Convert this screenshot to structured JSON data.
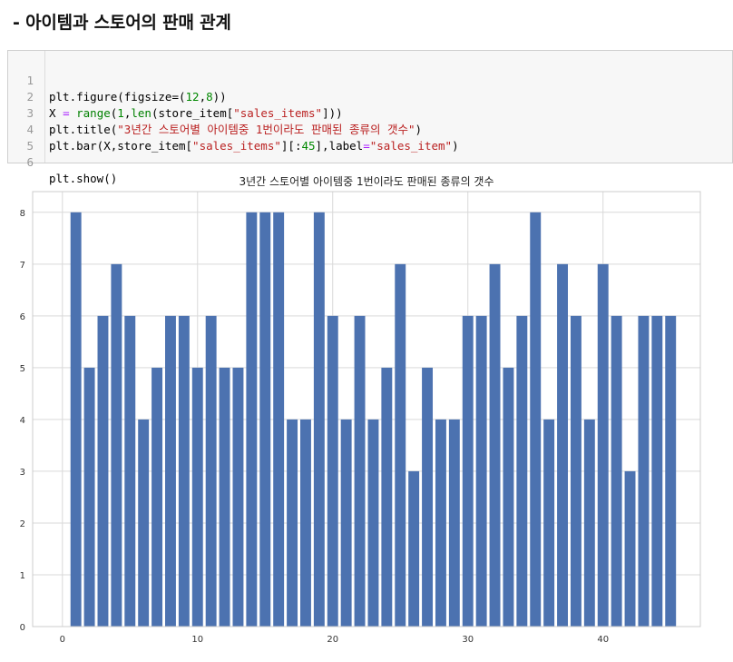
{
  "heading": "- 아이템과 스토어의 판매 관계",
  "code": {
    "line_numbers": [
      "1",
      "2",
      "3",
      "4",
      "5",
      "6"
    ],
    "line1": {
      "a": "plt.figure(figsize=(",
      "n1": "12",
      "c": ",",
      "n2": "8",
      "d": "))"
    },
    "line2": {
      "a": "X ",
      "eq": "=",
      "b": " ",
      "fn": "range",
      "c": "(",
      "n1": "1",
      "d": ",",
      "fn2": "len",
      "e": "(store_item[",
      "s": "\"sales_items\"",
      "f": "]))"
    },
    "line3": {
      "a": "plt.title(",
      "s": "\"3년간 스토어별 아이템중 1번이라도 판매된 종류의 갯수\"",
      "b": ")"
    },
    "line4": {
      "a": "plt.bar(X,store_item[",
      "s": "\"sales_items\"",
      "b": "][:",
      "n": "45",
      "c": "],label",
      "eq": "=",
      "s2": "\"sales_item\"",
      "d": ")"
    },
    "line6": {
      "a": "plt.show()"
    }
  },
  "chart_data": {
    "type": "bar",
    "title": "3년간 스토어별 아이템중 1번이라도 판매된 종류의 갯수",
    "xlabel": "",
    "ylabel": "",
    "x": [
      1,
      2,
      3,
      4,
      5,
      6,
      7,
      8,
      9,
      10,
      11,
      12,
      13,
      14,
      15,
      16,
      17,
      18,
      19,
      20,
      21,
      22,
      23,
      24,
      25,
      26,
      27,
      28,
      29,
      30,
      31,
      32,
      33,
      34,
      35,
      36,
      37,
      38,
      39,
      40,
      41,
      42,
      43,
      44,
      45
    ],
    "values": [
      8,
      5,
      6,
      7,
      6,
      4,
      5,
      6,
      6,
      5,
      6,
      5,
      5,
      8,
      8,
      8,
      4,
      4,
      8,
      6,
      4,
      6,
      4,
      5,
      7,
      3,
      5,
      4,
      4,
      6,
      6,
      7,
      5,
      6,
      8,
      4,
      7,
      6,
      4,
      7,
      6,
      3,
      6,
      6,
      6
    ],
    "xticks": [
      0,
      10,
      20,
      30,
      40
    ],
    "yticks": [
      0,
      1,
      2,
      3,
      4,
      5,
      6,
      7,
      8
    ],
    "xlim": [
      -2.2,
      47.2
    ],
    "ylim": [
      0,
      8.4
    ],
    "bar_color": "#4c72b0",
    "grid": true,
    "background": "#ffffff",
    "grid_color": "#d9d9d9"
  }
}
